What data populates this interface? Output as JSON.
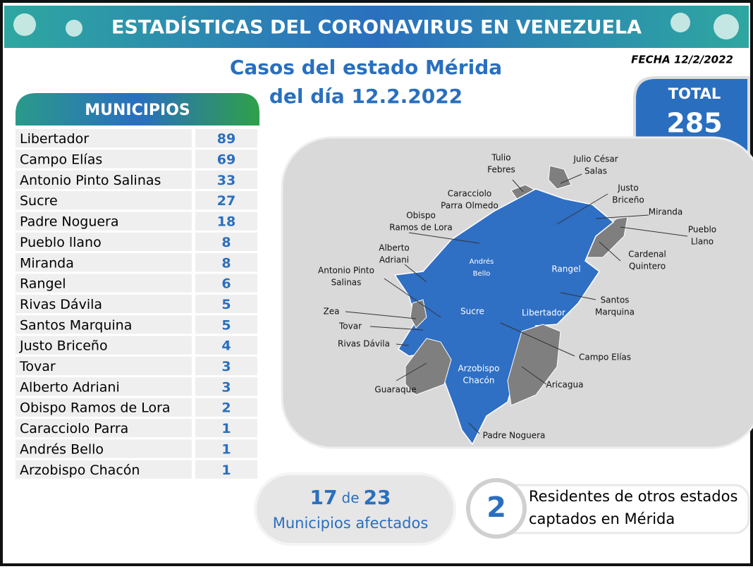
{
  "header": {
    "title": "ESTADÍSTICAS DEL CORONAVIRUS EN VENEZUELA",
    "date": "FECHA 12/2/2022"
  },
  "subtitle": [
    "Casos del estado Mérida",
    "del día 12.2.2022"
  ],
  "total": {
    "label": "TOTAL",
    "value": 285
  },
  "table": {
    "header": "MUNICIPIOS",
    "rows": [
      [
        "Libertador",
        89
      ],
      [
        "Campo Elías",
        69
      ],
      [
        "Antonio Pinto Salinas",
        33
      ],
      [
        "Sucre",
        27
      ],
      [
        "Padre Noguera",
        18
      ],
      [
        "Pueblo llano",
        8
      ],
      [
        "Miranda",
        8
      ],
      [
        "Rangel",
        6
      ],
      [
        "Rivas Dávila",
        5
      ],
      [
        "Santos Marquina",
        5
      ],
      [
        "Justo Briceño",
        4
      ],
      [
        "Tovar",
        3
      ],
      [
        "Alberto Adriani",
        3
      ],
      [
        "Obispo Ramos de Lora",
        2
      ],
      [
        "Caracciolo Parra",
        1
      ],
      [
        "Andrés Bello",
        1
      ],
      [
        "Arzobispo Chacón",
        1
      ]
    ]
  },
  "map": {
    "labels": [
      [
        "Tulio",
        "Febres"
      ],
      [
        "Julio César",
        "Salas"
      ],
      [
        "Caracciolo",
        "Parra Olmedo"
      ],
      [
        "Justo",
        "Briceño"
      ],
      [
        "Miranda"
      ],
      [
        "Obispo",
        "Ramos de Lora"
      ],
      [
        "Pueblo",
        "Llano"
      ],
      [
        "Alberto",
        "Adriani"
      ],
      [
        "Andrés",
        "Bello"
      ],
      [
        "Rangel"
      ],
      [
        "Cardenal",
        "Quintero"
      ],
      [
        "Antonio Pinto",
        "Salinas"
      ],
      [
        "Santos",
        "Marquina"
      ],
      [
        "Zea"
      ],
      [
        "Sucre"
      ],
      [
        "Libertador"
      ],
      [
        "Tovar"
      ],
      [
        "Rivas Dávila"
      ],
      [
        "Campo Elías"
      ],
      [
        "Arzobispo",
        "Chacón"
      ],
      [
        "Guaraque"
      ],
      [
        "Aricagua"
      ],
      [
        "Padre Noguera"
      ]
    ]
  },
  "affected": {
    "count": 17,
    "connector": "de",
    "of": 23,
    "label": "Municipios afectados"
  },
  "residents": {
    "count": 2,
    "lines": [
      "Residentes de otros estados",
      "captados en Mérida"
    ]
  }
}
